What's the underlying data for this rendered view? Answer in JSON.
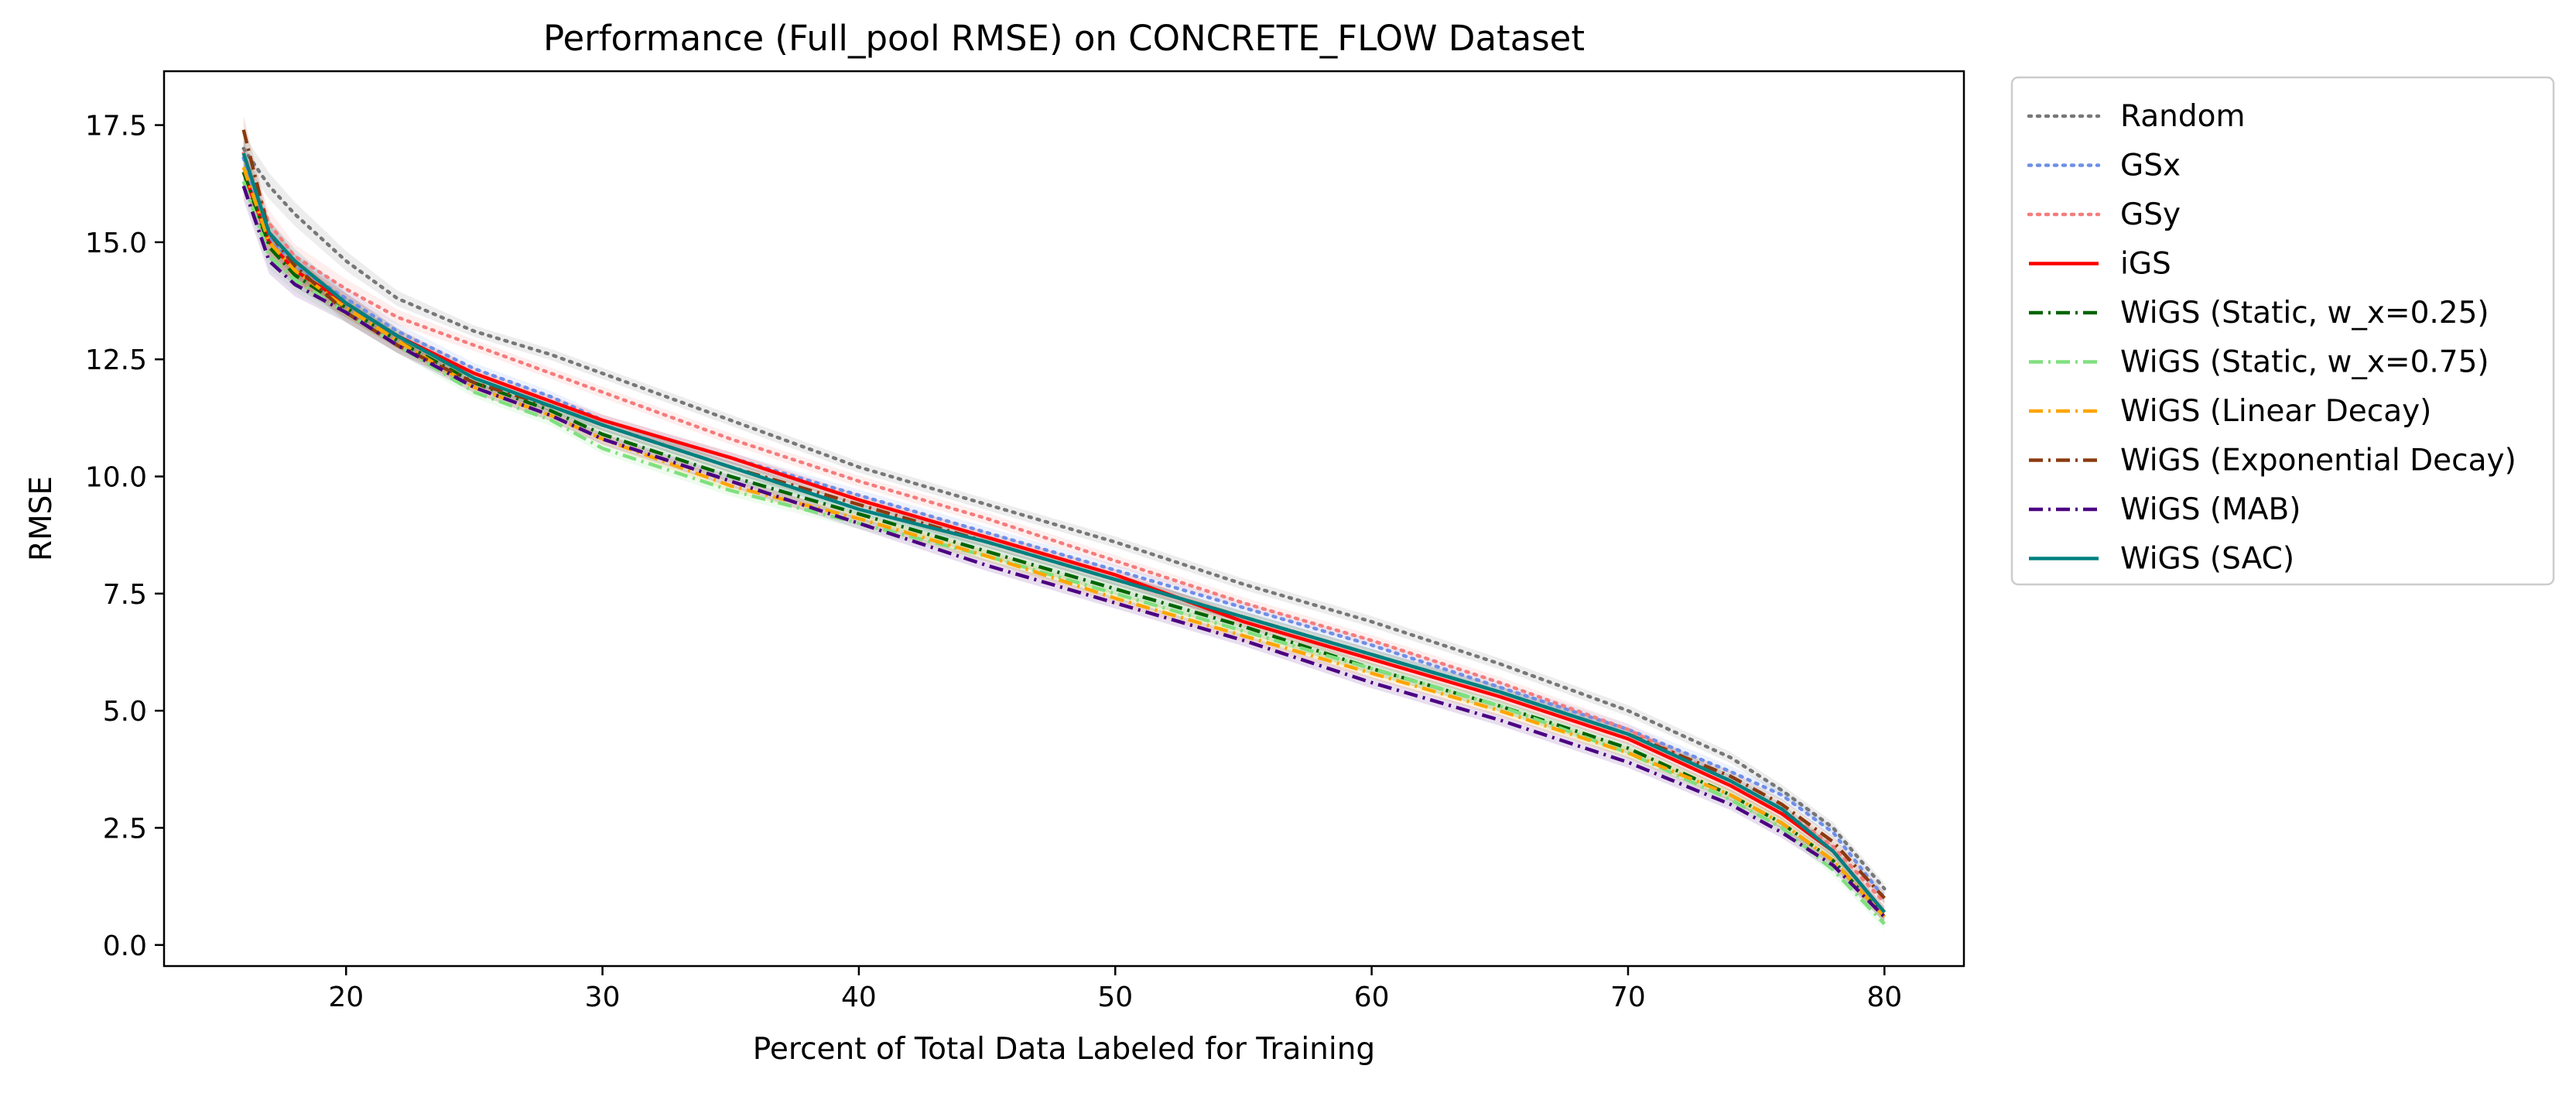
{
  "chart_data": {
    "type": "line",
    "title": "Performance (Full_pool RMSE) on CONCRETE_FLOW Dataset",
    "xlabel": "Percent of Total Data Labeled for Training",
    "ylabel": "RMSE",
    "xlim": [
      12.9,
      83.1
    ],
    "ylim": [
      -0.45,
      18.65
    ],
    "xticks": [
      20,
      30,
      40,
      50,
      60,
      70,
      80
    ],
    "xtick_labels": [
      "20",
      "30",
      "40",
      "50",
      "60",
      "70",
      "80"
    ],
    "yticks": [
      0.0,
      2.5,
      5.0,
      7.5,
      10.0,
      12.5,
      15.0,
      17.5
    ],
    "ytick_labels": [
      "0.0",
      "2.5",
      "5.0",
      "7.5",
      "10.0",
      "12.5",
      "15.0",
      "17.5"
    ],
    "grid": false,
    "legend_position": "outside-right",
    "x": [
      16,
      17,
      18,
      20,
      22,
      25,
      28,
      30,
      35,
      40,
      45,
      50,
      55,
      60,
      65,
      70,
      74,
      76,
      78,
      80
    ],
    "series": [
      {
        "name": "Random",
        "color": "#777777",
        "style": "dotted",
        "band": true,
        "values": [
          17.0,
          16.2,
          15.6,
          14.6,
          13.8,
          13.1,
          12.6,
          12.2,
          11.2,
          10.2,
          9.4,
          8.6,
          7.7,
          6.9,
          6.0,
          5.0,
          4.0,
          3.3,
          2.5,
          1.2
        ]
      },
      {
        "name": "GSx",
        "color": "#6f8fe6",
        "style": "dotted",
        "band": true,
        "values": [
          16.8,
          15.1,
          14.5,
          13.8,
          13.1,
          12.3,
          11.7,
          11.2,
          10.4,
          9.6,
          8.8,
          8.0,
          7.2,
          6.4,
          5.5,
          4.6,
          3.7,
          3.2,
          2.4,
          1.0
        ]
      },
      {
        "name": "GSy",
        "color": "#f47c7c",
        "style": "dotted",
        "band": true,
        "values": [
          16.9,
          15.4,
          14.7,
          14.0,
          13.4,
          12.8,
          12.2,
          11.8,
          10.8,
          9.9,
          9.1,
          8.2,
          7.3,
          6.5,
          5.6,
          4.6,
          3.5,
          2.9,
          2.1,
          0.9
        ]
      },
      {
        "name": "iGS",
        "color": "#ff0000",
        "style": "solid",
        "band": true,
        "values": [
          16.5,
          15.0,
          14.4,
          13.7,
          13.0,
          12.2,
          11.6,
          11.2,
          10.4,
          9.5,
          8.7,
          7.9,
          6.9,
          6.1,
          5.3,
          4.4,
          3.4,
          2.8,
          2.0,
          0.7
        ]
      },
      {
        "name": "WiGS (Static, w_x=0.25)",
        "color": "#006400",
        "style": "dashdot",
        "band": true,
        "values": [
          16.5,
          14.9,
          14.3,
          13.6,
          12.9,
          12.0,
          11.4,
          10.9,
          10.0,
          9.2,
          8.4,
          7.6,
          6.8,
          5.9,
          5.1,
          4.2,
          3.2,
          2.6,
          1.8,
          0.6
        ]
      },
      {
        "name": "WiGS (Static, w_x=0.75)",
        "color": "#7fe07f",
        "style": "dashdot",
        "band": true,
        "values": [
          16.3,
          14.7,
          14.2,
          13.5,
          12.8,
          11.8,
          11.2,
          10.6,
          9.7,
          9.0,
          8.3,
          7.5,
          6.7,
          5.9,
          5.1,
          4.1,
          3.1,
          2.5,
          1.6,
          0.45
        ]
      },
      {
        "name": "WiGS (Linear Decay)",
        "color": "#ffa500",
        "style": "dashdot",
        "band": true,
        "values": [
          16.6,
          15.0,
          14.4,
          13.6,
          12.9,
          11.9,
          11.3,
          10.8,
          9.8,
          9.1,
          8.3,
          7.4,
          6.6,
          5.8,
          5.0,
          4.1,
          3.2,
          2.6,
          1.8,
          0.6
        ]
      },
      {
        "name": "WiGS (Exponential Decay)",
        "color": "#8b3a0f",
        "style": "dashdot",
        "band": true,
        "values": [
          17.4,
          15.2,
          14.5,
          13.5,
          12.8,
          12.0,
          11.5,
          11.1,
          10.2,
          9.4,
          8.6,
          7.8,
          7.0,
          6.2,
          5.4,
          4.5,
          3.6,
          3.0,
          2.2,
          1.0
        ]
      },
      {
        "name": "WiGS (MAB)",
        "color": "#4b0082",
        "style": "dashdot",
        "band": true,
        "values": [
          16.2,
          14.6,
          14.1,
          13.5,
          12.8,
          11.9,
          11.3,
          10.8,
          9.9,
          9.0,
          8.1,
          7.3,
          6.5,
          5.6,
          4.8,
          3.9,
          3.0,
          2.4,
          1.7,
          0.6
        ]
      },
      {
        "name": "WiGS (SAC)",
        "color": "#008080",
        "style": "solid",
        "band": true,
        "values": [
          16.9,
          15.2,
          14.6,
          13.7,
          13.0,
          12.1,
          11.5,
          11.1,
          10.2,
          9.3,
          8.6,
          7.8,
          7.0,
          6.2,
          5.4,
          4.5,
          3.5,
          2.9,
          2.0,
          0.7
        ]
      }
    ]
  }
}
